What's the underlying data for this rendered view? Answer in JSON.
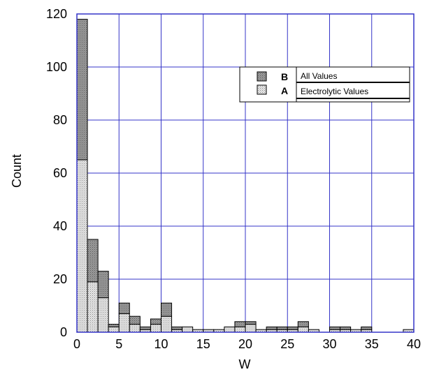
{
  "chart_data": {
    "type": "bar",
    "stacked": true,
    "xlabel": "W",
    "ylabel": "Count",
    "xlim": [
      0,
      40
    ],
    "ylim": [
      0,
      120
    ],
    "xticks": [
      0,
      5,
      10,
      15,
      20,
      25,
      30,
      35,
      40
    ],
    "yticks": [
      0,
      20,
      40,
      60,
      80,
      100,
      120
    ],
    "bin_width": 1.25,
    "bin_starts": [
      0,
      1.25,
      2.5,
      3.75,
      5,
      6.25,
      7.5,
      8.75,
      10,
      11.25,
      12.5,
      13.75,
      15,
      16.25,
      17.5,
      18.75,
      20,
      21.25,
      22.5,
      23.75,
      25,
      26.25,
      27.5,
      28.75,
      30,
      31.25,
      32.5,
      33.75,
      35,
      36.25,
      37.5,
      38.75
    ],
    "grid": true,
    "legend_position": "top-right",
    "series": [
      {
        "key": "A",
        "name": "Electrolytic Values",
        "pattern": "light-stipple",
        "color": "#d4d4d4",
        "values": [
          65,
          19,
          13,
          2,
          7,
          3,
          1,
          3,
          6,
          1,
          2,
          1,
          1,
          1,
          2,
          2,
          3,
          1,
          1,
          1,
          1,
          2,
          1,
          0,
          1,
          1,
          1,
          1,
          0,
          0,
          0,
          1
        ]
      },
      {
        "key": "B",
        "name": "All Values",
        "pattern": "dark-stipple",
        "color": "#8c8c8c",
        "values": [
          53,
          16,
          10,
          1,
          4,
          3,
          1,
          2,
          5,
          1,
          0,
          0,
          0,
          0,
          0,
          2,
          1,
          0,
          1,
          1,
          1,
          2,
          0,
          0,
          1,
          1,
          0,
          1,
          0,
          0,
          0,
          0
        ]
      }
    ]
  },
  "colors": {
    "grid": "#3434c8",
    "frame": "#3434c8",
    "bar_outline": "#000000"
  }
}
